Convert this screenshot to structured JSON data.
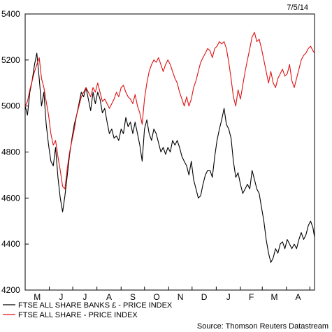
{
  "chart_data": {
    "type": "line",
    "date_label": "7/5/14",
    "source": "Source: Thomson Reuters Datastream",
    "ylim": [
      4200,
      5400
    ],
    "y_ticks": [
      4200,
      4400,
      4600,
      4800,
      5000,
      5200,
      5400
    ],
    "x_month_labels": [
      "M",
      "J",
      "J",
      "A",
      "S",
      "O",
      "N",
      "D",
      "J",
      "F",
      "M",
      "A"
    ],
    "x_range": [
      "2013-05-01",
      "2014-05-07"
    ],
    "grid": false,
    "legend_position": "bottom-left",
    "series": [
      {
        "name": "FTSE ALL SHARE BANKS £ - PRICE INDEX",
        "color": "#000000",
        "points": [
          [
            "2013-05-01",
            5000
          ],
          [
            "2013-05-04",
            4960
          ],
          [
            "2013-05-07",
            5060
          ],
          [
            "2013-05-10",
            5110
          ],
          [
            "2013-05-13",
            5180
          ],
          [
            "2013-05-16",
            5230
          ],
          [
            "2013-05-19",
            5120
          ],
          [
            "2013-05-22",
            5000
          ],
          [
            "2013-05-25",
            5060
          ],
          [
            "2013-05-28",
            4920
          ],
          [
            "2013-05-31",
            4830
          ],
          [
            "2013-06-03",
            4760
          ],
          [
            "2013-06-06",
            4740
          ],
          [
            "2013-06-09",
            4820
          ],
          [
            "2013-06-12",
            4690
          ],
          [
            "2013-06-15",
            4600
          ],
          [
            "2013-06-18",
            4540
          ],
          [
            "2013-06-21",
            4610
          ],
          [
            "2013-06-24",
            4700
          ],
          [
            "2013-06-27",
            4790
          ],
          [
            "2013-06-30",
            4860
          ],
          [
            "2013-07-03",
            4920
          ],
          [
            "2013-07-06",
            4960
          ],
          [
            "2013-07-09",
            5010
          ],
          [
            "2013-07-12",
            5060
          ],
          [
            "2013-07-15",
            5040
          ],
          [
            "2013-07-18",
            5080
          ],
          [
            "2013-07-21",
            5030
          ],
          [
            "2013-07-24",
            4980
          ],
          [
            "2013-07-27",
            5060
          ],
          [
            "2013-07-30",
            5010
          ],
          [
            "2013-08-02",
            5060
          ],
          [
            "2013-08-05",
            5030
          ],
          [
            "2013-08-08",
            4970
          ],
          [
            "2013-08-11",
            4990
          ],
          [
            "2013-08-14",
            4930
          ],
          [
            "2013-08-17",
            4880
          ],
          [
            "2013-08-20",
            4900
          ],
          [
            "2013-08-23",
            4860
          ],
          [
            "2013-08-26",
            4870
          ],
          [
            "2013-08-29",
            4850
          ],
          [
            "2013-09-01",
            4900
          ],
          [
            "2013-09-04",
            4880
          ],
          [
            "2013-09-07",
            4950
          ],
          [
            "2013-09-10",
            4910
          ],
          [
            "2013-09-13",
            4930
          ],
          [
            "2013-09-16",
            4880
          ],
          [
            "2013-09-19",
            4930
          ],
          [
            "2013-09-22",
            4880
          ],
          [
            "2013-09-25",
            4830
          ],
          [
            "2013-09-28",
            4760
          ],
          [
            "2013-10-01",
            4900
          ],
          [
            "2013-10-04",
            4940
          ],
          [
            "2013-10-07",
            4880
          ],
          [
            "2013-10-10",
            4850
          ],
          [
            "2013-10-13",
            4900
          ],
          [
            "2013-10-16",
            4880
          ],
          [
            "2013-10-19",
            4840
          ],
          [
            "2013-10-22",
            4800
          ],
          [
            "2013-10-25",
            4820
          ],
          [
            "2013-10-28",
            4790
          ],
          [
            "2013-10-31",
            4820
          ],
          [
            "2013-11-03",
            4800
          ],
          [
            "2013-11-06",
            4850
          ],
          [
            "2013-11-09",
            4830
          ],
          [
            "2013-11-12",
            4850
          ],
          [
            "2013-11-15",
            4820
          ],
          [
            "2013-11-18",
            4780
          ],
          [
            "2013-11-21",
            4760
          ],
          [
            "2013-11-24",
            4740
          ],
          [
            "2013-11-27",
            4700
          ],
          [
            "2013-11-30",
            4760
          ],
          [
            "2013-12-03",
            4680
          ],
          [
            "2013-12-06",
            4640
          ],
          [
            "2013-12-09",
            4600
          ],
          [
            "2013-12-12",
            4610
          ],
          [
            "2013-12-15",
            4660
          ],
          [
            "2013-12-18",
            4700
          ],
          [
            "2013-12-21",
            4720
          ],
          [
            "2013-12-24",
            4720
          ],
          [
            "2013-12-27",
            4690
          ],
          [
            "2013-12-30",
            4780
          ],
          [
            "2014-01-02",
            4850
          ],
          [
            "2014-01-05",
            4900
          ],
          [
            "2014-01-08",
            4940
          ],
          [
            "2014-01-11",
            4990
          ],
          [
            "2014-01-14",
            4920
          ],
          [
            "2014-01-17",
            4900
          ],
          [
            "2014-01-20",
            4860
          ],
          [
            "2014-01-23",
            4760
          ],
          [
            "2014-01-26",
            4690
          ],
          [
            "2014-01-29",
            4710
          ],
          [
            "2014-02-01",
            4660
          ],
          [
            "2014-02-04",
            4620
          ],
          [
            "2014-02-07",
            4640
          ],
          [
            "2014-02-10",
            4660
          ],
          [
            "2014-02-13",
            4640
          ],
          [
            "2014-02-16",
            4720
          ],
          [
            "2014-02-19",
            4680
          ],
          [
            "2014-02-22",
            4640
          ],
          [
            "2014-02-25",
            4620
          ],
          [
            "2014-02-28",
            4560
          ],
          [
            "2014-03-03",
            4500
          ],
          [
            "2014-03-06",
            4420
          ],
          [
            "2014-03-09",
            4360
          ],
          [
            "2014-03-12",
            4320
          ],
          [
            "2014-03-15",
            4340
          ],
          [
            "2014-03-18",
            4380
          ],
          [
            "2014-03-21",
            4360
          ],
          [
            "2014-03-24",
            4400
          ],
          [
            "2014-03-27",
            4410
          ],
          [
            "2014-03-30",
            4380
          ],
          [
            "2014-04-02",
            4420
          ],
          [
            "2014-04-05",
            4400
          ],
          [
            "2014-04-08",
            4380
          ],
          [
            "2014-04-11",
            4400
          ],
          [
            "2014-04-14",
            4380
          ],
          [
            "2014-04-17",
            4420
          ],
          [
            "2014-04-20",
            4450
          ],
          [
            "2014-04-23",
            4420
          ],
          [
            "2014-04-26",
            4440
          ],
          [
            "2014-04-29",
            4480
          ],
          [
            "2014-05-02",
            4500
          ],
          [
            "2014-05-05",
            4470
          ],
          [
            "2014-05-07",
            4430
          ]
        ]
      },
      {
        "name": "FTSE ALL SHARE - PRICE INDEX",
        "color": "#e01010",
        "points": [
          [
            "2013-05-01",
            5000
          ],
          [
            "2013-05-04",
            5020
          ],
          [
            "2013-05-07",
            5070
          ],
          [
            "2013-05-10",
            5110
          ],
          [
            "2013-05-13",
            5150
          ],
          [
            "2013-05-16",
            5180
          ],
          [
            "2013-05-19",
            5210
          ],
          [
            "2013-05-22",
            5120
          ],
          [
            "2013-05-25",
            5080
          ],
          [
            "2013-05-28",
            5020
          ],
          [
            "2013-05-31",
            4960
          ],
          [
            "2013-06-03",
            4880
          ],
          [
            "2013-06-06",
            4830
          ],
          [
            "2013-06-09",
            4850
          ],
          [
            "2013-06-12",
            4780
          ],
          [
            "2013-06-15",
            4720
          ],
          [
            "2013-06-18",
            4650
          ],
          [
            "2013-06-21",
            4640
          ],
          [
            "2013-06-24",
            4730
          ],
          [
            "2013-06-27",
            4800
          ],
          [
            "2013-06-30",
            4850
          ],
          [
            "2013-07-03",
            4900
          ],
          [
            "2013-07-06",
            4960
          ],
          [
            "2013-07-09",
            5000
          ],
          [
            "2013-07-12",
            5040
          ],
          [
            "2013-07-15",
            5060
          ],
          [
            "2013-07-18",
            5080
          ],
          [
            "2013-07-21",
            5060
          ],
          [
            "2013-07-24",
            5040
          ],
          [
            "2013-07-27",
            5080
          ],
          [
            "2013-07-30",
            5060
          ],
          [
            "2013-08-02",
            5100
          ],
          [
            "2013-08-05",
            5060
          ],
          [
            "2013-08-08",
            5020
          ],
          [
            "2013-08-11",
            5030
          ],
          [
            "2013-08-14",
            5010
          ],
          [
            "2013-08-17",
            4990
          ],
          [
            "2013-08-20",
            5010
          ],
          [
            "2013-08-23",
            5030
          ],
          [
            "2013-08-26",
            5060
          ],
          [
            "2013-08-29",
            5040
          ],
          [
            "2013-09-01",
            5080
          ],
          [
            "2013-09-04",
            5090
          ],
          [
            "2013-09-07",
            5060
          ],
          [
            "2013-09-10",
            5040
          ],
          [
            "2013-09-13",
            5030
          ],
          [
            "2013-09-16",
            5010
          ],
          [
            "2013-09-19",
            5050
          ],
          [
            "2013-09-22",
            5000
          ],
          [
            "2013-09-25",
            4970
          ],
          [
            "2013-09-28",
            4920
          ],
          [
            "2013-10-01",
            5030
          ],
          [
            "2013-10-04",
            5100
          ],
          [
            "2013-10-07",
            5150
          ],
          [
            "2013-10-10",
            5180
          ],
          [
            "2013-10-13",
            5200
          ],
          [
            "2013-10-16",
            5190
          ],
          [
            "2013-10-19",
            5210
          ],
          [
            "2013-10-22",
            5180
          ],
          [
            "2013-10-25",
            5150
          ],
          [
            "2013-10-28",
            5180
          ],
          [
            "2013-10-31",
            5200
          ],
          [
            "2013-11-03",
            5180
          ],
          [
            "2013-11-06",
            5150
          ],
          [
            "2013-11-09",
            5120
          ],
          [
            "2013-11-12",
            5100
          ],
          [
            "2013-11-15",
            5060
          ],
          [
            "2013-11-18",
            5030
          ],
          [
            "2013-11-21",
            5000
          ],
          [
            "2013-11-24",
            5040
          ],
          [
            "2013-11-27",
            5000
          ],
          [
            "2013-11-30",
            5030
          ],
          [
            "2013-12-03",
            5080
          ],
          [
            "2013-12-06",
            5110
          ],
          [
            "2013-12-09",
            5150
          ],
          [
            "2013-12-12",
            5190
          ],
          [
            "2013-12-15",
            5210
          ],
          [
            "2013-12-18",
            5230
          ],
          [
            "2013-12-21",
            5250
          ],
          [
            "2013-12-24",
            5240
          ],
          [
            "2013-12-27",
            5210
          ],
          [
            "2013-12-30",
            5250
          ],
          [
            "2014-01-02",
            5260
          ],
          [
            "2014-01-05",
            5280
          ],
          [
            "2014-01-08",
            5270
          ],
          [
            "2014-01-11",
            5280
          ],
          [
            "2014-01-14",
            5250
          ],
          [
            "2014-01-17",
            5190
          ],
          [
            "2014-01-20",
            5120
          ],
          [
            "2014-01-23",
            5040
          ],
          [
            "2014-01-26",
            5000
          ],
          [
            "2014-01-29",
            5070
          ],
          [
            "2014-02-01",
            5030
          ],
          [
            "2014-02-04",
            5090
          ],
          [
            "2014-02-07",
            5150
          ],
          [
            "2014-02-10",
            5200
          ],
          [
            "2014-02-13",
            5250
          ],
          [
            "2014-02-16",
            5300
          ],
          [
            "2014-02-19",
            5320
          ],
          [
            "2014-02-22",
            5280
          ],
          [
            "2014-02-25",
            5290
          ],
          [
            "2014-02-28",
            5250
          ],
          [
            "2014-03-03",
            5200
          ],
          [
            "2014-03-06",
            5150
          ],
          [
            "2014-03-09",
            5100
          ],
          [
            "2014-03-12",
            5150
          ],
          [
            "2014-03-15",
            5100
          ],
          [
            "2014-03-18",
            5080
          ],
          [
            "2014-03-21",
            5120
          ],
          [
            "2014-03-24",
            5140
          ],
          [
            "2014-03-27",
            5160
          ],
          [
            "2014-03-30",
            5130
          ],
          [
            "2014-04-02",
            5140
          ],
          [
            "2014-04-05",
            5180
          ],
          [
            "2014-04-08",
            5110
          ],
          [
            "2014-04-11",
            5080
          ],
          [
            "2014-04-14",
            5120
          ],
          [
            "2014-04-17",
            5160
          ],
          [
            "2014-04-20",
            5200
          ],
          [
            "2014-04-23",
            5220
          ],
          [
            "2014-04-26",
            5230
          ],
          [
            "2014-04-29",
            5250
          ],
          [
            "2014-05-02",
            5260
          ],
          [
            "2014-05-05",
            5240
          ],
          [
            "2014-05-07",
            5230
          ]
        ]
      }
    ]
  }
}
